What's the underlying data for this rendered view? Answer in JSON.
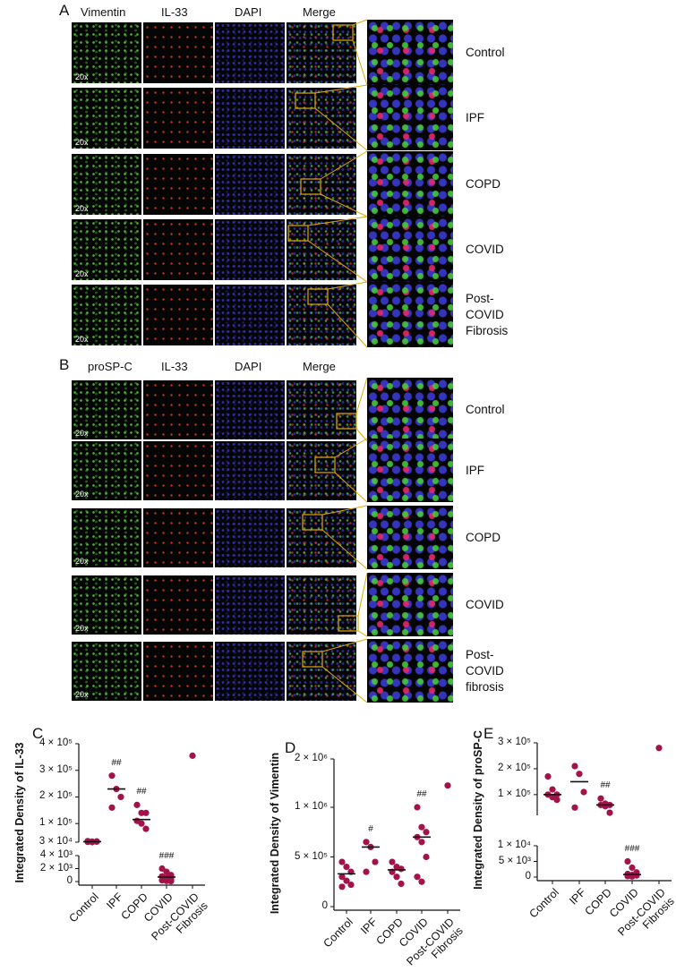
{
  "panel_a": {
    "label": "A",
    "columns": [
      "Vimentin",
      "IL-33",
      "DAPI",
      "Merge"
    ],
    "rows": [
      "Control",
      "IPF",
      "COPD",
      "COVID",
      "Post-COVID Fibrosis"
    ],
    "magnification": "20x"
  },
  "panel_b": {
    "label": "B",
    "columns": [
      "proSP-C",
      "IL-33",
      "DAPI",
      "Merge"
    ],
    "rows": [
      "Control",
      "IPF",
      "COPD",
      "COVID",
      "Post-COVID fibrosis"
    ],
    "magnification": "20x"
  },
  "chart_data": [
    {
      "type": "scatter",
      "panel": "C",
      "ylabel": "Integrated Density of IL-33",
      "color": "#a3134a",
      "categories": [
        "Control",
        "IPF",
        "COPD",
        "COVID",
        "Post-COVID Fibrosis"
      ],
      "points": [
        [
          31000,
          32000,
          33000,
          34000,
          30000,
          32000,
          33000
        ],
        [
          280000,
          230000,
          200000,
          160000
        ],
        [
          170000,
          140000,
          140000,
          110000,
          100000,
          80000
        ],
        [
          2000,
          1500,
          1000,
          800,
          600,
          400,
          200,
          100,
          50
        ],
        [
          355000
        ]
      ],
      "medians": [
        32000,
        230000,
        115000,
        700,
        null
      ],
      "annotations": [
        null,
        "##",
        "##",
        "###",
        null
      ],
      "segments": [
        {
          "ylim": [
            0,
            4000
          ],
          "yticks": [
            0,
            {
              "value": 2000,
              "label": "2 × 10³"
            },
            {
              "value": 4000,
              "label": "4 × 10³"
            }
          ]
        },
        {
          "ylim": [
            30000,
            400000
          ],
          "yticks": [
            {
              "value": 30000,
              "label": "3 × 10⁴"
            },
            {
              "value": 100000,
              "label": "1 × 10⁵"
            },
            {
              "value": 200000,
              "label": "2 × 10⁵"
            },
            {
              "value": 300000,
              "label": "3 × 10⁵"
            },
            {
              "value": 400000,
              "label": "4 × 10⁵"
            }
          ]
        }
      ]
    },
    {
      "type": "scatter",
      "panel": "D",
      "ylabel": "Integrated Density of Vimentin",
      "color": "#a3134a",
      "categories": [
        "Control",
        "IPF",
        "COPD",
        "COVID",
        "Post-COVID Fibrosis"
      ],
      "points": [
        [
          450000,
          400000,
          350000,
          300000,
          260000,
          220000,
          200000
        ],
        [
          650000,
          600000,
          450000,
          350000
        ],
        [
          450000,
          400000,
          380000,
          350000,
          300000,
          230000
        ],
        [
          1000000,
          800000,
          750000,
          700000,
          650000,
          500000,
          300000,
          250000
        ],
        [
          1450000
        ]
      ],
      "medians": [
        330000,
        600000,
        370000,
        700000,
        null
      ],
      "annotations": [
        null,
        "#",
        null,
        "##",
        null
      ],
      "segments": [
        {
          "ylim": [
            0,
            1000000
          ],
          "yticks": [
            0,
            {
              "value": 500000,
              "label": "5 × 10⁵"
            },
            {
              "value": 1000000,
              "label": "1 × 10⁶"
            }
          ]
        },
        {
          "ylim": [
            1000000,
            2000000
          ],
          "yticks": [
            {
              "value": 2000000,
              "label": "2 × 10⁶"
            }
          ]
        }
      ]
    },
    {
      "type": "scatter",
      "panel": "E",
      "ylabel": "Integrated Density of proSP-C",
      "color": "#a3134a",
      "categories": [
        "Control",
        "IPF",
        "COPD",
        "COVID",
        "Post-COVID Fibrosis"
      ],
      "points": [
        [
          170000,
          120000,
          100000,
          100000,
          90000,
          80000
        ],
        [
          210000,
          180000,
          110000,
          50000
        ],
        [
          85000,
          65000,
          60000,
          60000,
          55000,
          30000
        ],
        [
          5000,
          3000,
          1500,
          1000,
          700,
          500,
          300,
          200
        ],
        [
          280000
        ]
      ],
      "medians": [
        100000,
        150000,
        60000,
        800,
        null
      ],
      "annotations": [
        null,
        null,
        "##",
        "###",
        null
      ],
      "segments": [
        {
          "ylim": [
            0,
            10000
          ],
          "yticks": [
            0,
            {
              "value": 5000,
              "label": "5 × 10³"
            },
            {
              "value": 10000,
              "label": "1 × 10⁴"
            }
          ]
        },
        {
          "ylim": [
            20000,
            300000
          ],
          "yticks": [
            {
              "value": 100000,
              "label": "1 × 10⁵"
            },
            {
              "value": 200000,
              "label": "2 × 10⁵"
            },
            {
              "value": 300000,
              "label": "3 × 10⁵"
            }
          ]
        }
      ]
    }
  ]
}
